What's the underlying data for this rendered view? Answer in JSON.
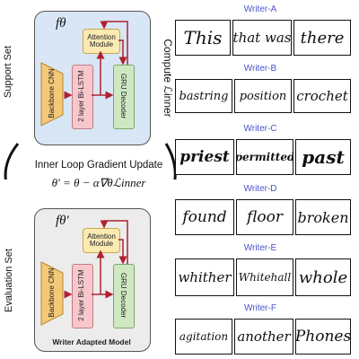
{
  "top_panel": {
    "f_label": "fθ",
    "backbone": "Backbone CNN",
    "bilstm": "2 layer Bi-LSTM",
    "attention": "Attention Module",
    "gru": "GRU Decoder",
    "side_label": "Support Set",
    "compute_label": "Compute ℒinner",
    "colors": {
      "panel_bg": "#d8e6f6"
    }
  },
  "middle": {
    "title": "Inner Loop Gradient Update",
    "formula": "θ′ = θ − α∇θℒinner"
  },
  "bottom_panel": {
    "f_label": "fθ′",
    "backbone": "Backbone CNN",
    "bilstm": "2 layer Bi-LSTM",
    "attention": "Attention Module",
    "gru": "GRU Decoder",
    "side_label": "Evaluation Set",
    "caption": "Writer Adapted Model",
    "colors": {
      "panel_bg": "#ececec"
    }
  },
  "block_colors": {
    "backbone": "#f4c879",
    "bilstm": "#f7c7cc",
    "attention": "#fbeab2",
    "gru": "#cfe8c2",
    "arrow": "#b0202e"
  },
  "writers": [
    {
      "name": "Writer-A",
      "words": [
        "This",
        "that was",
        "there"
      ]
    },
    {
      "name": "Writer-B",
      "words": [
        "bastring",
        "position",
        "crochet"
      ]
    },
    {
      "name": "Writer-C",
      "words": [
        "priest",
        "permitted",
        "past"
      ]
    },
    {
      "name": "Writer-D",
      "words": [
        "found",
        "floor",
        "broken"
      ]
    },
    {
      "name": "Writer-E",
      "words": [
        "whither",
        "Whitehall",
        "whole"
      ]
    },
    {
      "name": "Writer-F",
      "words": [
        "agitation",
        "another",
        "Phones"
      ]
    }
  ]
}
